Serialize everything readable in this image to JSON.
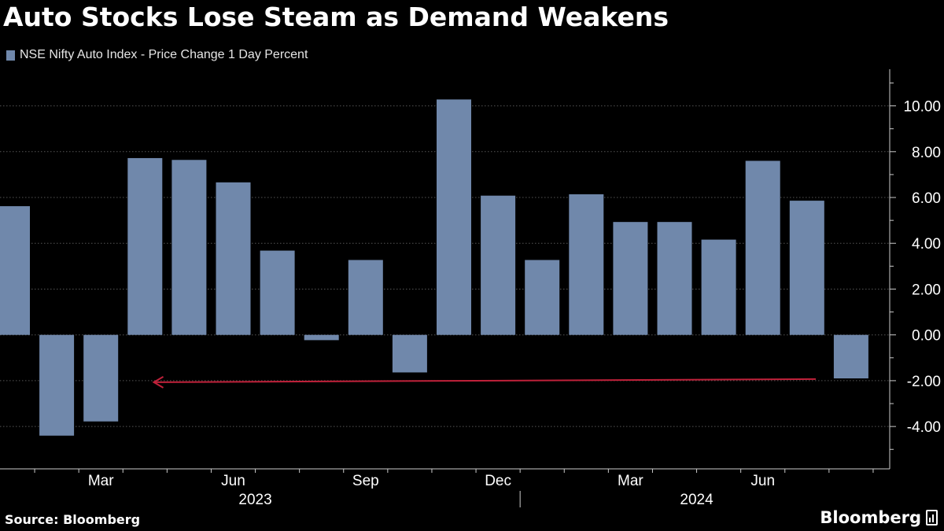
{
  "title": "Auto Stocks Lose Steam as Demand Weakens",
  "footer": {
    "source": "Source: Bloomberg",
    "brand": "Bloomberg"
  },
  "colors": {
    "background": "#000000",
    "bar": "#7088ab",
    "arrow": "#c0213a",
    "grid": "#555555"
  },
  "chart_data": {
    "type": "bar",
    "legend": "NSE Nifty Auto Index - Price Change 1 Day Percent",
    "x": [
      "2023-01",
      "2023-02",
      "2023-03",
      "2023-04",
      "2023-05",
      "2023-06",
      "2023-07",
      "2023-08",
      "2023-09",
      "2023-10",
      "2023-11",
      "2023-12",
      "2024-01",
      "2024-02",
      "2024-03",
      "2024-04",
      "2024-05",
      "2024-06",
      "2024-07",
      "2024-08"
    ],
    "values": [
      5.62,
      -4.4,
      -3.78,
      7.72,
      7.64,
      6.66,
      3.68,
      -0.23,
      3.27,
      -1.64,
      10.28,
      6.08,
      3.27,
      6.14,
      4.93,
      4.93,
      4.16,
      7.6,
      5.86,
      -1.9
    ],
    "ylim": [
      -5.85,
      11.6
    ],
    "yticks": [
      10,
      8,
      6,
      4,
      2,
      0,
      -2,
      -4
    ],
    "ytick_labels": [
      "10.00",
      "8.00",
      "6.00",
      "4.00",
      "2.00",
      "0.00",
      "-2.00",
      "-4.00"
    ],
    "xtick_labels": [
      {
        "label": "Mar",
        "at": 2
      },
      {
        "label": "Jun",
        "at": 5
      },
      {
        "label": "Sep",
        "at": 8
      },
      {
        "label": "Dec",
        "at": 11
      },
      {
        "label": "Mar",
        "at": 14
      },
      {
        "label": "Jun",
        "at": 17
      }
    ],
    "year_labels": [
      {
        "label": "2023",
        "from": 0,
        "to": 11
      },
      {
        "label": "2024",
        "from": 12,
        "to": 19
      }
    ],
    "annotation": {
      "type": "arrow",
      "y": -2.0,
      "from_index": 18.2,
      "to_index": 3.2
    },
    "grid": true
  }
}
